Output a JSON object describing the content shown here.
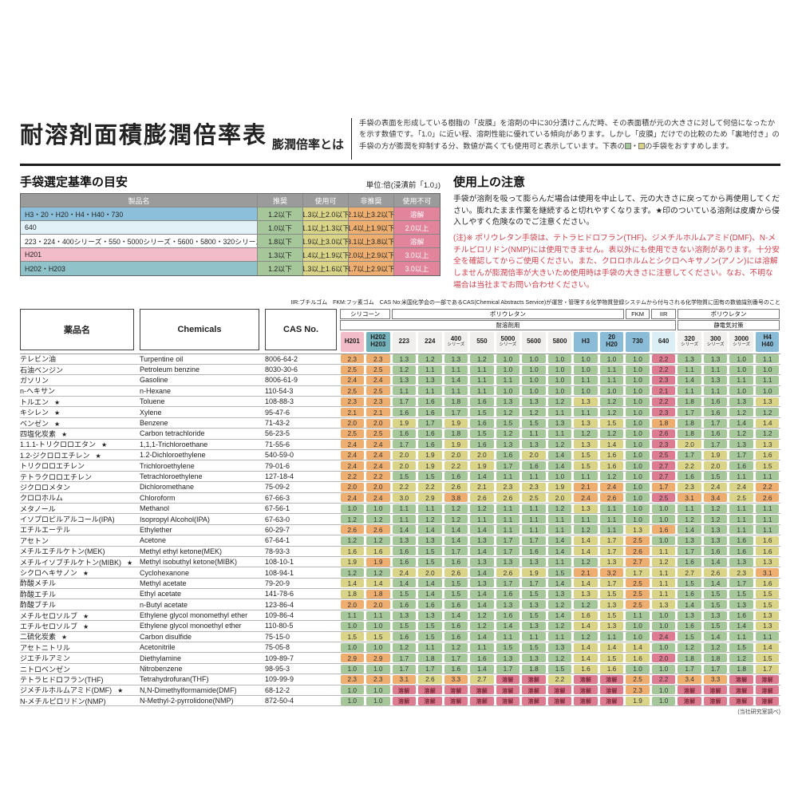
{
  "header": {
    "title": "耐溶剤面積膨潤倍率表",
    "subtitle": "膨潤倍率とは",
    "description": "手袋の表面を形成している樹脂の「皮膜」を溶剤の中に30分漬けこんだ時、その表面積が元の大きさに対して何倍になったかを示す数値です。「1.0」に近い程、溶剤性能に優れている傾向があります。しかし「皮膜」だけでの比較のため「裏地付き」の手袋の方が膨潤を抑制する分、数値が高くても使用可と表示しています。下表の",
    "description_mid": "・",
    "description_suffix": "の手袋をおすすめします。"
  },
  "criteria": {
    "title": "手袋選定基準の目安",
    "unit_note": "単位:倍(浸漬前「1.0」)",
    "headers": [
      "製品名",
      "推奨",
      "使用可",
      "非推奨",
      "使用不可"
    ],
    "rows": [
      {
        "product": "H3・20・H20・H4・H40・730",
        "bg": "#8cc0da",
        "recommended": "1.2以下",
        "usable": "1.3以上2.0以下",
        "not_recommended": "2.1以上3.2以下",
        "unusable": "溶解"
      },
      {
        "product": "640",
        "bg": "#e2f1f8",
        "recommended": "1.0以下",
        "usable": "1.1以上1.3以下",
        "not_recommended": "1.4以上1.9以下",
        "unusable": "2.0以上"
      },
      {
        "product": "223・224・400シリーズ・550・5000シリーズ・5600・5800・320シリーズ・300シリーズ・3000シリーズ",
        "bg": "#ffffff",
        "recommended": "1.8以下",
        "usable": "1.9以上3.0以下",
        "not_recommended": "3.1以上3.8以下",
        "unusable": "溶解"
      },
      {
        "product": "H201",
        "bg": "#f2bcc9",
        "recommended": "1.3以下",
        "usable": "1.4以上1.9以下",
        "not_recommended": "2.0以上2.9以下",
        "unusable": "3.0以上"
      },
      {
        "product": "H202・H203",
        "bg": "#8fc3c9",
        "recommended": "1.2以下",
        "usable": "1.3以上1.6以下",
        "not_recommended": "1.7以上2.9以下",
        "unusable": "3.0以上"
      }
    ]
  },
  "notes": {
    "title": "使用上の注意",
    "paragraph1": "手袋が溶剤を吸って膨らんだ場合は使用を中止して、元の大きさに戻ってから再使用してください。膨れたまま作業を継続すると切れやすくなります。★印のついている溶剤は皮膚から侵入しやすく危険なのでご注意ください。",
    "paragraph2": "(注)※ ポリウレタン手袋は、テトラヒドロフラン(THF)、ジメチルホルムアミド(DMF)、N-メチルピロリドン(NMP)には使用できません。表以外にも使用できない溶剤があります。十分安全を確認してからご使用ください。また、クロロホルムとシクロヘキサノン(アノン)には溶解しませんが膨潤倍率が大きいため使用時は手袋の大きさに注意してください。なお、不明な場合は当社までお問い合わせください。"
  },
  "legend_line": "IIR:ブチルゴム　FKM:フッ素ゴム　CAS No:米国化学会の一部であるCAS(Chemical Abstracts Service)が運営・管理する化学物質登録システムから付与される化学物質に固有の数値識別番号のこと",
  "colors": {
    "green": "#a5c79a",
    "yellow": "#d9d488",
    "orange": "#edae70",
    "red": "#dd7b91",
    "dissolve_text": "#7b2b38",
    "criteria_unusable_bg": "#e2849b",
    "criteria_header_bg": "#9b9b9b",
    "note_red": "#d0424e",
    "column_bg": {
      "pink": "#f2bcc9",
      "teal": "#74b3bc",
      "gray": "#f0efed",
      "blue": "#8abcd8",
      "lightblue": "#dbedf5"
    }
  },
  "table": {
    "left_headers": [
      "薬品名",
      "Chemicals",
      "CAS No."
    ],
    "material_groups": [
      {
        "label": "シリコーン",
        "span": 2
      },
      {
        "label": "ポリウレタン",
        "span": 9
      },
      {
        "label": "FKM",
        "span": 1
      },
      {
        "label": "IIR",
        "span": 1
      },
      {
        "label": "ポリウレタン",
        "span": 4
      }
    ],
    "purpose_groups": [
      {
        "label": "耐溶剤用",
        "span": 13
      },
      {
        "label": "静電気対策",
        "span": 4
      }
    ],
    "dissolve_label": "溶解",
    "color_rules": {
      "H201": [
        1.3,
        1.9,
        2.9
      ],
      "H202_H203": [
        1.2,
        1.6,
        2.9
      ],
      "PU": [
        1.8,
        3.0,
        3.8
      ],
      "H": [
        1.2,
        2.0,
        3.2
      ],
      "640": [
        1.0,
        1.3,
        1.9
      ]
    },
    "columns": [
      {
        "label": "H201",
        "bg": "pink",
        "group": "H201"
      },
      {
        "lines": [
          "H202",
          "H203"
        ],
        "bg": "teal",
        "group": "H202_H203"
      },
      {
        "label": "223",
        "bg": "gray",
        "group": "PU"
      },
      {
        "label": "224",
        "bg": "gray",
        "group": "PU"
      },
      {
        "label": "400",
        "sub": "シリーズ",
        "bg": "gray",
        "group": "PU"
      },
      {
        "label": "550",
        "bg": "gray",
        "group": "PU"
      },
      {
        "label": "5000",
        "sub": "シリーズ",
        "bg": "gray",
        "group": "PU"
      },
      {
        "label": "5600",
        "bg": "gray",
        "group": "PU"
      },
      {
        "label": "5800",
        "bg": "gray",
        "group": "PU"
      },
      {
        "label": "H3",
        "bg": "blue",
        "group": "H"
      },
      {
        "lines": [
          "20",
          "H20"
        ],
        "bg": "blue",
        "group": "H"
      },
      {
        "label": "730",
        "bg": "blue",
        "group": "H"
      },
      {
        "label": "640",
        "bg": "lightblue",
        "group": "640"
      },
      {
        "label": "320",
        "sub": "シリーズ",
        "bg": "gray",
        "group": "PU"
      },
      {
        "label": "300",
        "sub": "シリーズ",
        "bg": "gray",
        "group": "PU"
      },
      {
        "label": "3000",
        "sub": "シリーズ",
        "bg": "gray",
        "group": "PU"
      },
      {
        "lines": [
          "H4",
          "H40"
        ],
        "bg": "blue",
        "group": "H"
      }
    ],
    "rows": [
      {
        "name": "テレビン油",
        "star": false,
        "chem": "Turpentine oil",
        "cas": "8006-64-2",
        "values": [
          "2.3",
          "2.3",
          "1.3",
          "1.2",
          "1.3",
          "1.2",
          "1.0",
          "1.0",
          "1.0",
          "1.0",
          "1.0",
          "1.0",
          "2.2",
          "1.3",
          "1.3",
          "1.0",
          "1.1"
        ]
      },
      {
        "name": "石油ベンジン",
        "star": false,
        "chem": "Petroleum benzine",
        "cas": "8030-30-6",
        "values": [
          "2.5",
          "2.5",
          "1.2",
          "1.1",
          "1.1",
          "1.1",
          "1.0",
          "1.0",
          "1.0",
          "1.0",
          "1.1",
          "1.0",
          "2.2",
          "1.1",
          "1.1",
          "1.0",
          "1.0"
        ]
      },
      {
        "name": "ガソリン",
        "star": false,
        "chem": "Gasoline",
        "cas": "8006-61-9",
        "values": [
          "2.4",
          "2.4",
          "1.3",
          "1.3",
          "1.4",
          "1.1",
          "1.1",
          "1.0",
          "1.0",
          "1.1",
          "1.1",
          "1.0",
          "2.3",
          "1.4",
          "1.3",
          "1.1",
          "1.1"
        ]
      },
      {
        "name": "n-ヘキサン",
        "star": false,
        "chem": "n-Hexane",
        "cas": "110-54-3",
        "values": [
          "2.5",
          "2.5",
          "1.1",
          "1.1",
          "1.1",
          "1.1",
          "1.0",
          "1.0",
          "1.0",
          "1.0",
          "1.0",
          "1.0",
          "2.1",
          "1.1",
          "1.1",
          "1.0",
          "1.0"
        ]
      },
      {
        "name": "トルエン",
        "star": true,
        "chem": "Toluene",
        "cas": "108-88-3",
        "values": [
          "2.3",
          "2.3",
          "1.7",
          "1.6",
          "1.8",
          "1.6",
          "1.3",
          "1.3",
          "1.2",
          "1.3",
          "1.2",
          "1.0",
          "2.2",
          "1.8",
          "1.6",
          "1.3",
          "1.3"
        ]
      },
      {
        "name": "キシレン",
        "star": true,
        "chem": "Xylene",
        "cas": "95-47-6",
        "values": [
          "2.1",
          "2.1",
          "1.6",
          "1.6",
          "1.7",
          "1.5",
          "1.2",
          "1.2",
          "1.1",
          "1.1",
          "1.2",
          "1.0",
          "2.3",
          "1.7",
          "1.6",
          "1.2",
          "1.2"
        ]
      },
      {
        "name": "ベンゼン",
        "star": true,
        "chem": "Benzene",
        "cas": "71-43-2",
        "values": [
          "2.0",
          "2.0",
          "1.9",
          "1.7",
          "1.9",
          "1.6",
          "1.5",
          "1.5",
          "1.3",
          "1.3",
          "1.5",
          "1.0",
          "1.8",
          "1.8",
          "1.7",
          "1.4",
          "1.4"
        ]
      },
      {
        "name": "四塩化炭素",
        "star": true,
        "chem": "Carbon tetrachloride",
        "cas": "56-23-5",
        "values": [
          "2.5",
          "2.5",
          "1.6",
          "1.6",
          "1.8",
          "1.5",
          "1.2",
          "1.1",
          "1.1",
          "1.2",
          "1.2",
          "1.0",
          "2.6",
          "1.8",
          "1.6",
          "1.2",
          "1.2"
        ]
      },
      {
        "name": "1.1.1-トリクロロエタン",
        "star": true,
        "chem": "1,1,1-Trichloroethane",
        "cas": "71-55-6",
        "values": [
          "2.4",
          "2.4",
          "1.7",
          "1.6",
          "1.9",
          "1.6",
          "1.3",
          "1.3",
          "1.2",
          "1.3",
          "1.4",
          "1.0",
          "2.3",
          "2.0",
          "1.7",
          "1.3",
          "1.3"
        ]
      },
      {
        "name": "1.2-ジクロロエチレン",
        "star": true,
        "chem": "1.2-Dichloroethylene",
        "cas": "540-59-0",
        "values": [
          "2.4",
          "2.4",
          "2.0",
          "1.9",
          "2.0",
          "2.0",
          "1.6",
          "2.0",
          "1.4",
          "1.5",
          "1.6",
          "1.0",
          "2.5",
          "1.7",
          "1.9",
          "1.7",
          "1.6"
        ]
      },
      {
        "name": "トリクロロエチレン",
        "star": false,
        "chem": "Trichloroethylene",
        "cas": "79-01-6",
        "values": [
          "2.4",
          "2.4",
          "2.0",
          "1.9",
          "2.2",
          "1.9",
          "1.7",
          "1.6",
          "1.4",
          "1.5",
          "1.6",
          "1.0",
          "2.7",
          "2.2",
          "2.0",
          "1.6",
          "1.5"
        ]
      },
      {
        "name": "テトラクロロエチレン",
        "star": false,
        "chem": "Tetrachloroethylene",
        "cas": "127-18-4",
        "values": [
          "2.2",
          "2.2",
          "1.5",
          "1.5",
          "1.6",
          "1.4",
          "1.1",
          "1.1",
          "1.0",
          "1.1",
          "1.2",
          "1.0",
          "2.7",
          "1.6",
          "1.5",
          "1.1",
          "1.1"
        ]
      },
      {
        "name": "ジクロロメタン",
        "star": false,
        "chem": "Dichloromethane",
        "cas": "75-09-2",
        "values": [
          "2.0",
          "2.0",
          "2.2",
          "2.2",
          "2.6",
          "2.1",
          "2.3",
          "2.3",
          "1.9",
          "2.1",
          "2.4",
          "1.0",
          "1.7",
          "2.3",
          "2.4",
          "2.4",
          "2.2"
        ]
      },
      {
        "name": "クロロホルム",
        "star": false,
        "chem": "Chloroform",
        "cas": "67-66-3",
        "values": [
          "2.4",
          "2.4",
          "3.0",
          "2.9",
          "3.8",
          "2.6",
          "2.6",
          "2.5",
          "2.0",
          "2.4",
          "2.6",
          "1.0",
          "2.5",
          "3.1",
          "3.4",
          "2.5",
          "2.6"
        ]
      },
      {
        "name": "メタノール",
        "star": false,
        "chem": "Methanol",
        "cas": "67-56-1",
        "values": [
          "1.0",
          "1.0",
          "1.1",
          "1.1",
          "1.2",
          "1.2",
          "1.1",
          "1.1",
          "1.2",
          "1.3",
          "1.1",
          "1.0",
          "1.0",
          "1.1",
          "1.2",
          "1.1",
          "1.1"
        ]
      },
      {
        "name": "イソプロピルアルコール(IPA)",
        "star": false,
        "chem": "Isopropyl Alcohol(IPA)",
        "cas": "67-63-0",
        "values": [
          "1.2",
          "1.2",
          "1.1",
          "1.2",
          "1.2",
          "1.1",
          "1.1",
          "1.1",
          "1.1",
          "1.1",
          "1.1",
          "1.0",
          "1.0",
          "1.2",
          "1.2",
          "1.1",
          "1.1"
        ]
      },
      {
        "name": "エチルエーテル",
        "star": false,
        "chem": "Ethylether",
        "cas": "60-29-7",
        "values": [
          "2.6",
          "2.6",
          "1.4",
          "1.4",
          "1.4",
          "1.4",
          "1.1",
          "1.1",
          "1.1",
          "1.2",
          "1.1",
          "1.3",
          "1.6",
          "1.4",
          "1.3",
          "1.1",
          "1.1"
        ]
      },
      {
        "name": "アセトン",
        "star": false,
        "chem": "Acetone",
        "cas": "67-64-1",
        "values": [
          "1.2",
          "1.2",
          "1.3",
          "1.3",
          "1.4",
          "1.3",
          "1.7",
          "1.7",
          "1.4",
          "1.4",
          "1.7",
          "2.5",
          "1.0",
          "1.3",
          "1.3",
          "1.6",
          "1.6"
        ]
      },
      {
        "name": "メチルエチルケトン(MEK)",
        "star": false,
        "chem": "Methyl ethyl ketone(MEK)",
        "cas": "78-93-3",
        "values": [
          "1.6",
          "1.6",
          "1.6",
          "1.5",
          "1.7",
          "1.4",
          "1.7",
          "1.6",
          "1.4",
          "1.4",
          "1.7",
          "2.6",
          "1.1",
          "1.7",
          "1.6",
          "1.6",
          "1.6"
        ]
      },
      {
        "name": "メチルイソブチルケトン(MIBK)",
        "star": true,
        "chem": "Methyl isobuthyl ketone(MIBK)",
        "cas": "108-10-1",
        "values": [
          "1.9",
          "1.9",
          "1.6",
          "1.5",
          "1.6",
          "1.3",
          "1.3",
          "1.3",
          "1.1",
          "1.2",
          "1.3",
          "2.7",
          "1.2",
          "1.6",
          "1.4",
          "1.3",
          "1.3"
        ]
      },
      {
        "name": "シクロヘキサノン",
        "star": true,
        "chem": "Cyclohexanone",
        "cas": "108-94-1",
        "values": [
          "1.2",
          "1.2",
          "2.4",
          "2.0",
          "2.6",
          "1.4",
          "2.6",
          "1.9",
          "1.5",
          "2.1",
          "3.2",
          "1.7",
          "1.1",
          "2.7",
          "2.6",
          "2.3",
          "3.1"
        ]
      },
      {
        "name": "酢酸メチル",
        "star": false,
        "chem": "Methyl acetate",
        "cas": "79-20-9",
        "values": [
          "1.4",
          "1.4",
          "1.4",
          "1.4",
          "1.5",
          "1.3",
          "1.7",
          "1.7",
          "1.4",
          "1.4",
          "1.7",
          "2.5",
          "1.1",
          "1.5",
          "1.4",
          "1.7",
          "1.6"
        ]
      },
      {
        "name": "酢酸エチル",
        "star": false,
        "chem": "Ethyl acetate",
        "cas": "141-78-6",
        "values": [
          "1.8",
          "1.8",
          "1.5",
          "1.4",
          "1.5",
          "1.4",
          "1.6",
          "1.5",
          "1.3",
          "1.3",
          "1.5",
          "2.5",
          "1.1",
          "1.6",
          "1.5",
          "1.5",
          "1.5"
        ]
      },
      {
        "name": "酢酸ブチル",
        "star": false,
        "chem": "n-Butyl acetate",
        "cas": "123-86-4",
        "values": [
          "2.0",
          "2.0",
          "1.6",
          "1.6",
          "1.6",
          "1.4",
          "1.3",
          "1.3",
          "1.2",
          "1.2",
          "1.3",
          "2.5",
          "1.3",
          "1.4",
          "1.5",
          "1.3",
          "1.5"
        ]
      },
      {
        "name": "メチルセロソルブ",
        "star": true,
        "chem": "Ethylene glycol monomethyl ether",
        "cas": "109-86-4",
        "values": [
          "1.1",
          "1.1",
          "1.3",
          "1.3",
          "1.4",
          "1.2",
          "1.6",
          "1.5",
          "1.4",
          "1.6",
          "1.5",
          "1.1",
          "1.0",
          "1.3",
          "1.3",
          "1.6",
          "1.3"
        ]
      },
      {
        "name": "エチルセロソルブ",
        "star": true,
        "chem": "Ethylene glycol monoethyl ether",
        "cas": "110-80-5",
        "values": [
          "1.0",
          "1.0",
          "1.5",
          "1.5",
          "1.6",
          "1.2",
          "1.4",
          "1.3",
          "1.2",
          "1.4",
          "1.3",
          "1.0",
          "1.0",
          "1.6",
          "1.5",
          "1.4",
          "1.3"
        ]
      },
      {
        "name": "二硫化炭素",
        "star": true,
        "chem": "Carbon disulfide",
        "cas": "75-15-0",
        "values": [
          "1.5",
          "1.5",
          "1.6",
          "1.5",
          "1.6",
          "1.4",
          "1.1",
          "1.1",
          "1.1",
          "1.2",
          "1.1",
          "1.0",
          "2.4",
          "1.5",
          "1.4",
          "1.1",
          "1.1"
        ]
      },
      {
        "name": "アセトニトリル",
        "star": false,
        "chem": "Acetonitrile",
        "cas": "75-05-8",
        "values": [
          "1.0",
          "1.0",
          "1.2",
          "1.1",
          "1.2",
          "1.1",
          "1.5",
          "1.5",
          "1.3",
          "1.4",
          "1.4",
          "1.4",
          "1.0",
          "1.2",
          "1.2",
          "1.5",
          "1.4"
        ]
      },
      {
        "name": "ジエチルアミン",
        "star": false,
        "chem": "Diethylamine",
        "cas": "109-89-7",
        "values": [
          "2.9",
          "2.9",
          "1.7",
          "1.8",
          "1.7",
          "1.6",
          "1.3",
          "1.3",
          "1.2",
          "1.4",
          "1.5",
          "1.6",
          "2.0",
          "1.8",
          "1.8",
          "1.2",
          "1.5"
        ]
      },
      {
        "name": "ニトロベンゼン",
        "star": false,
        "chem": "Nitrobenzene",
        "cas": "98-95-3",
        "values": [
          "1.0",
          "1.0",
          "1.7",
          "1.7",
          "1.6",
          "1.4",
          "1.7",
          "1.8",
          "1.5",
          "1.6",
          "1.6",
          "1.0",
          "1.0",
          "1.7",
          "1.7",
          "1.8",
          "1.7"
        ]
      },
      {
        "name": "テトラヒドロフラン(THF)",
        "star": false,
        "chem": "Tetrahydrofuran(THF)",
        "cas": "109-99-9",
        "values": [
          "2.3",
          "2.3",
          "3.1",
          "2.6",
          "3.3",
          "2.7",
          "溶解",
          "溶解",
          "2.2",
          "溶解",
          "溶解",
          "2.5",
          "2.2",
          "3.4",
          "3.3",
          "溶解",
          "溶解"
        ]
      },
      {
        "name": "ジメチルホルムアミド(DMF)",
        "star": true,
        "chem": "N,N-Dimethylformamide(DMF)",
        "cas": "68-12-2",
        "values": [
          "1.0",
          "1.0",
          "溶解",
          "溶解",
          "溶解",
          "溶解",
          "溶解",
          "溶解",
          "溶解",
          "溶解",
          "溶解",
          "2.3",
          "1.0",
          "溶解",
          "溶解",
          "溶解",
          "溶解"
        ]
      },
      {
        "name": "N-メチルピロリドン(NMP)",
        "star": false,
        "chem": "N-Methyl-2-pyrrolidone(NMP)",
        "cas": "872-50-4",
        "values": [
          "1.0",
          "1.0",
          "溶解",
          "溶解",
          "溶解",
          "溶解",
          "溶解",
          "溶解",
          "溶解",
          "溶解",
          "溶解",
          "1.9",
          "1.0",
          "溶解",
          "溶解",
          "溶解",
          "溶解"
        ]
      }
    ],
    "footnote": "(当社研究室調べ)"
  }
}
